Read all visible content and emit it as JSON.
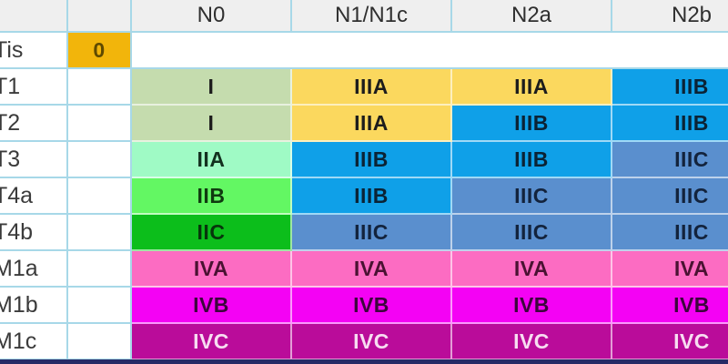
{
  "header": {
    "columns": [
      "",
      "",
      "N0",
      "N1/N1c",
      "N2a",
      "N2b"
    ]
  },
  "rows": [
    {
      "label": "Tis",
      "col1": {
        "text": "0",
        "color": "amber"
      },
      "merged_blank": true,
      "cells": []
    },
    {
      "label": "T1",
      "cells": [
        {
          "text": "I",
          "color": "sage"
        },
        {
          "text": "IIIA",
          "color": "yellow"
        },
        {
          "text": "IIIA",
          "color": "yellow"
        },
        {
          "text": "IIIB",
          "color": "azure"
        }
      ]
    },
    {
      "label": "T2",
      "cells": [
        {
          "text": "I",
          "color": "sage"
        },
        {
          "text": "IIIA",
          "color": "yellow"
        },
        {
          "text": "IIIB",
          "color": "azure"
        },
        {
          "text": "IIIB",
          "color": "azure"
        }
      ]
    },
    {
      "label": "T3",
      "cells": [
        {
          "text": "IIA",
          "color": "mint"
        },
        {
          "text": "IIIB",
          "color": "azure"
        },
        {
          "text": "IIIB",
          "color": "azure"
        },
        {
          "text": "IIIC",
          "color": "steel"
        }
      ]
    },
    {
      "label": "T4a",
      "cells": [
        {
          "text": "IIB",
          "color": "lightgreen"
        },
        {
          "text": "IIIB",
          "color": "azure"
        },
        {
          "text": "IIIC",
          "color": "steel"
        },
        {
          "text": "IIIC",
          "color": "steel"
        }
      ]
    },
    {
      "label": "T4b",
      "cells": [
        {
          "text": "IIC",
          "color": "green"
        },
        {
          "text": "IIIC",
          "color": "steel"
        },
        {
          "text": "IIIC",
          "color": "steel"
        },
        {
          "text": "IIIC",
          "color": "steel"
        }
      ]
    },
    {
      "label": "M1a",
      "cells": [
        {
          "text": "IVA",
          "color": "pink"
        },
        {
          "text": "IVA",
          "color": "pink"
        },
        {
          "text": "IVA",
          "color": "pink"
        },
        {
          "text": "IVA",
          "color": "pink"
        }
      ]
    },
    {
      "label": "M1b",
      "cells": [
        {
          "text": "IVB",
          "color": "magenta"
        },
        {
          "text": "IVB",
          "color": "magenta"
        },
        {
          "text": "IVB",
          "color": "magenta"
        },
        {
          "text": "IVB",
          "color": "magenta"
        }
      ]
    },
    {
      "label": "M1c",
      "cells": [
        {
          "text": "IVC",
          "color": "darkmagenta"
        },
        {
          "text": "IVC",
          "color": "darkmagenta"
        },
        {
          "text": "IVC",
          "color": "darkmagenta"
        },
        {
          "text": "IVC",
          "color": "darkmagenta"
        }
      ]
    }
  ],
  "colors": {
    "amber": {
      "bg": "#F2B50B",
      "text": "#5F4A00"
    },
    "sage": {
      "bg": "#C5DCAE",
      "text": "#1C1C1C"
    },
    "mint": {
      "bg": "#9FFAC5",
      "text": "#13301F"
    },
    "lightgreen": {
      "bg": "#63F763",
      "text": "#103A10"
    },
    "green": {
      "bg": "#0CBE1B",
      "text": "#07350C"
    },
    "yellow": {
      "bg": "#FBD85E",
      "text": "#1C1C1C"
    },
    "azure": {
      "bg": "#0FA0E8",
      "text": "#0B2335"
    },
    "steel": {
      "bg": "#5A8FCE",
      "text": "#13233C"
    },
    "pink": {
      "bg": "#FC6CC2",
      "text": "#4A1232"
    },
    "magenta": {
      "bg": "#F402F4",
      "text": "#3C063C"
    },
    "darkmagenta": {
      "bg": "#BA0C9A",
      "text": "#F7DDF1"
    }
  },
  "ui": {
    "header_bg": "#EFEFEF",
    "grid_border": "#A7D8E8",
    "cell_divider": "rgba(255,255,255,0.6)",
    "bottom_strip": "#262A66"
  },
  "chart_data": {
    "type": "table",
    "title": "",
    "columns": [
      "N0",
      "N1/N1c",
      "N2a",
      "N2b"
    ],
    "row_labels": [
      "Tis",
      "T1",
      "T2",
      "T3",
      "T4a",
      "T4b",
      "M1a",
      "M1b",
      "M1c"
    ],
    "matrix": [
      {
        "row": "Tis",
        "stage": "0",
        "by_n": [
          "",
          "",
          "",
          ""
        ]
      },
      {
        "row": "T1",
        "by_n": [
          "I",
          "IIIA",
          "IIIA",
          "IIIB"
        ]
      },
      {
        "row": "T2",
        "by_n": [
          "I",
          "IIIA",
          "IIIB",
          "IIIB"
        ]
      },
      {
        "row": "T3",
        "by_n": [
          "IIA",
          "IIIB",
          "IIIB",
          "IIIC"
        ]
      },
      {
        "row": "T4a",
        "by_n": [
          "IIB",
          "IIIB",
          "IIIC",
          "IIIC"
        ]
      },
      {
        "row": "T4b",
        "by_n": [
          "IIC",
          "IIIC",
          "IIIC",
          "IIIC"
        ]
      },
      {
        "row": "M1a",
        "by_n": [
          "IVA",
          "IVA",
          "IVA",
          "IVA"
        ]
      },
      {
        "row": "M1b",
        "by_n": [
          "IVB",
          "IVB",
          "IVB",
          "IVB"
        ]
      },
      {
        "row": "M1c",
        "by_n": [
          "IVC",
          "IVC",
          "IVC",
          "IVC"
        ]
      }
    ]
  }
}
